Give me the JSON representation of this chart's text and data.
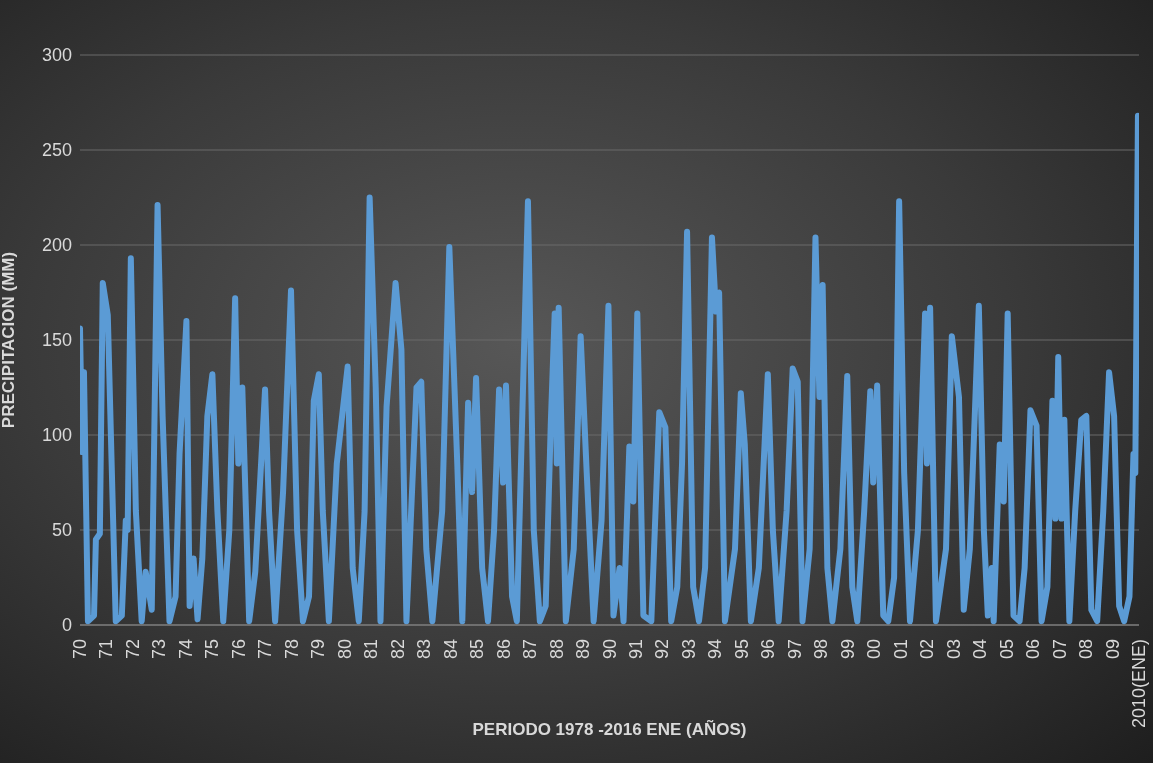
{
  "chart_data": {
    "type": "line",
    "xlabel": "PERIODO 1978 -2016 ENE  (AÑOS)",
    "ylabel": "PRECIPITACION (MM)",
    "x": [
      1970.0,
      1970.08,
      1970.15,
      1970.3,
      1970.53,
      1970.6,
      1970.75,
      1970.86,
      1971.05,
      1971.35,
      1971.58,
      1971.73,
      1971.8,
      1971.92,
      1972.11,
      1972.33,
      1972.48,
      1972.71,
      1972.93,
      1973.12,
      1973.38,
      1973.61,
      1973.76,
      1974.02,
      1974.14,
      1974.29,
      1974.44,
      1974.62,
      1974.81,
      1975.0,
      1975.19,
      1975.41,
      1975.64,
      1975.86,
      1975.98,
      1976.13,
      1976.39,
      1976.62,
      1976.99,
      1977.14,
      1977.37,
      1977.67,
      1977.97,
      1978.2,
      1978.42,
      1978.65,
      1978.83,
      1979.02,
      1979.17,
      1979.4,
      1979.7,
      1980.11,
      1980.3,
      1980.53,
      1980.75,
      1980.94,
      1981.17,
      1981.35,
      1981.58,
      1981.92,
      1982.14,
      1982.33,
      1982.71,
      1982.89,
      1983.08,
      1983.31,
      1983.68,
      1983.95,
      1984.25,
      1984.44,
      1984.66,
      1984.81,
      1984.96,
      1985.19,
      1985.41,
      1985.64,
      1985.83,
      1985.98,
      1986.09,
      1986.32,
      1986.5,
      1986.92,
      1987.14,
      1987.37,
      1987.59,
      1987.78,
      1987.93,
      1988.01,
      1988.08,
      1988.35,
      1988.65,
      1988.91,
      1989.14,
      1989.4,
      1989.7,
      1989.96,
      1990.15,
      1990.38,
      1990.53,
      1990.75,
      1990.9,
      1991.05,
      1991.28,
      1991.58,
      1991.88,
      1992.11,
      1992.33,
      1992.56,
      1992.74,
      1992.93,
      1993.16,
      1993.38,
      1993.61,
      1993.87,
      1994.02,
      1994.14,
      1994.36,
      1994.74,
      1994.96,
      1995.11,
      1995.34,
      1995.64,
      1995.98,
      1996.17,
      1996.39,
      1996.69,
      1996.92,
      1997.11,
      1997.29,
      1997.56,
      1997.78,
      1997.93,
      1998.05,
      1998.23,
      1998.42,
      1998.72,
      1998.98,
      1999.17,
      1999.36,
      1999.62,
      1999.85,
      1999.96,
      2000.11,
      2000.34,
      2000.53,
      2000.75,
      2000.94,
      2001.13,
      2001.35,
      2001.65,
      2001.92,
      2001.99,
      2002.11,
      2002.33,
      2002.71,
      2002.93,
      2003.2,
      2003.38,
      2003.61,
      2003.95,
      2004.14,
      2004.29,
      2004.44,
      2004.51,
      2004.74,
      2004.89,
      2005.04,
      2005.26,
      2005.49,
      2005.68,
      2005.9,
      2006.13,
      2006.32,
      2006.54,
      2006.73,
      2006.84,
      2006.95,
      2007.07,
      2007.18,
      2007.37,
      2007.59,
      2007.82,
      2008.01,
      2008.2,
      2008.42,
      2008.65,
      2008.87,
      2009.06,
      2009.25,
      2009.44,
      2009.64,
      2009.79,
      2009.86,
      2009.96
    ],
    "series": [
      {
        "color": "#5b9bd5",
        "values": [
          156,
          91,
          133,
          2,
          5,
          45,
          48,
          180,
          163,
          2,
          5,
          55,
          50,
          193,
          60,
          2,
          28,
          8,
          221,
          110,
          2,
          15,
          90,
          160,
          10,
          35,
          3,
          35,
          110,
          132,
          60,
          2,
          50,
          172,
          85,
          125,
          2,
          28,
          124,
          60,
          2,
          70,
          176,
          50,
          2,
          15,
          118,
          132,
          60,
          2,
          85,
          136,
          30,
          2,
          60,
          225,
          125,
          2,
          115,
          180,
          145,
          2,
          125,
          128,
          40,
          2,
          60,
          199,
          85,
          2,
          117,
          70,
          130,
          30,
          2,
          50,
          124,
          75,
          126,
          15,
          2,
          223,
          50,
          2,
          10,
          105,
          164,
          85,
          167,
          2,
          40,
          152,
          80,
          2,
          55,
          168,
          5,
          30,
          2,
          94,
          65,
          164,
          5,
          2,
          112,
          104,
          2,
          20,
          85,
          207,
          20,
          2,
          30,
          204,
          165,
          175,
          2,
          40,
          122,
          95,
          2,
          30,
          132,
          50,
          2,
          60,
          135,
          128,
          2,
          40,
          204,
          120,
          179,
          30,
          2,
          40,
          131,
          20,
          2,
          60,
          123,
          75,
          126,
          5,
          2,
          25,
          223,
          80,
          2,
          50,
          164,
          85,
          167,
          2,
          40,
          152,
          120,
          8,
          40,
          168,
          50,
          5,
          30,
          2,
          95,
          65,
          164,
          5,
          2,
          30,
          113,
          105,
          2,
          20,
          118,
          56,
          141,
          56,
          108,
          2,
          60,
          108,
          110,
          8,
          2,
          60,
          133,
          110,
          10,
          2,
          15,
          90,
          80,
          268
        ]
      }
    ],
    "xlim": [
      1970,
      2010
    ],
    "xticks": [
      {
        "value": 1970,
        "label": "70"
      },
      {
        "value": 1971,
        "label": "71"
      },
      {
        "value": 1972,
        "label": "72"
      },
      {
        "value": 1973,
        "label": "73"
      },
      {
        "value": 1974,
        "label": "74"
      },
      {
        "value": 1975,
        "label": "75"
      },
      {
        "value": 1976,
        "label": "76"
      },
      {
        "value": 1977,
        "label": "77"
      },
      {
        "value": 1978,
        "label": "78"
      },
      {
        "value": 1979,
        "label": "79"
      },
      {
        "value": 1980,
        "label": "80"
      },
      {
        "value": 1981,
        "label": "81"
      },
      {
        "value": 1982,
        "label": "82"
      },
      {
        "value": 1983,
        "label": "83"
      },
      {
        "value": 1984,
        "label": "84"
      },
      {
        "value": 1985,
        "label": "85"
      },
      {
        "value": 1986,
        "label": "86"
      },
      {
        "value": 1987,
        "label": "87"
      },
      {
        "value": 1988,
        "label": "88"
      },
      {
        "value": 1989,
        "label": "89"
      },
      {
        "value": 1990,
        "label": "90"
      },
      {
        "value": 1991,
        "label": "91"
      },
      {
        "value": 1992,
        "label": "92"
      },
      {
        "value": 1993,
        "label": "93"
      },
      {
        "value": 1994,
        "label": "94"
      },
      {
        "value": 1995,
        "label": "95"
      },
      {
        "value": 1996,
        "label": "96"
      },
      {
        "value": 1997,
        "label": "97"
      },
      {
        "value": 1998,
        "label": "98"
      },
      {
        "value": 1999,
        "label": "99"
      },
      {
        "value": 2000,
        "label": "00"
      },
      {
        "value": 2001,
        "label": "01"
      },
      {
        "value": 2002,
        "label": "02"
      },
      {
        "value": 2003,
        "label": "03"
      },
      {
        "value": 2004,
        "label": "04"
      },
      {
        "value": 2005,
        "label": "05"
      },
      {
        "value": 2006,
        "label": "06"
      },
      {
        "value": 2007,
        "label": "07"
      },
      {
        "value": 2008,
        "label": "08"
      },
      {
        "value": 2009,
        "label": "09"
      },
      {
        "value": 2010,
        "label": "2010(ENE)"
      }
    ],
    "ylim": [
      0,
      300
    ],
    "yticks": [
      0,
      50,
      100,
      150,
      200,
      250,
      300
    ],
    "grid": "y",
    "marker": "none"
  }
}
